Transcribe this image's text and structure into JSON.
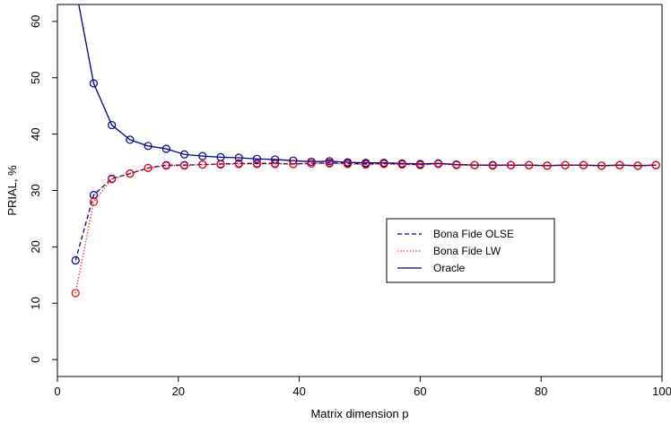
{
  "chart_data": {
    "type": "line",
    "xlabel": "Matrix dimension p",
    "ylabel": "PRIAL, %",
    "xlim": [
      0,
      100
    ],
    "ylim": [
      -3,
      63
    ],
    "x_ticks": [
      0,
      20,
      40,
      60,
      80,
      100
    ],
    "y_ticks": [
      0,
      10,
      20,
      30,
      40,
      50,
      60
    ],
    "grid": false,
    "legend_position": "center-right",
    "series": [
      {
        "name": "Bona Fide OLSE",
        "line_style": "dashed",
        "color": "#00008B",
        "marker": "circle",
        "x": [
          3,
          6,
          9,
          12,
          15,
          18,
          21,
          24,
          27,
          30,
          33,
          36,
          39,
          42,
          45,
          48,
          51,
          54,
          57,
          60,
          63,
          66,
          69,
          72,
          75,
          78,
          81,
          84,
          87,
          90,
          93,
          96,
          99
        ],
        "y": [
          17.6,
          29.2,
          32.1,
          33.0,
          34.0,
          34.5,
          34.5,
          34.6,
          34.7,
          34.8,
          34.8,
          34.8,
          34.7,
          34.8,
          34.9,
          34.8,
          34.7,
          34.8,
          34.7,
          34.6,
          34.8,
          34.6,
          34.5,
          34.5,
          34.5,
          34.5,
          34.4,
          34.5,
          34.5,
          34.4,
          34.5,
          34.4,
          34.5
        ]
      },
      {
        "name": "Bona Fide LW",
        "line_style": "dotted",
        "color": "#FF0000",
        "marker": "circle",
        "x": [
          3,
          6,
          9,
          12,
          15,
          18,
          21,
          24,
          27,
          30,
          33,
          36,
          39,
          42,
          45,
          48,
          51,
          54,
          57,
          60,
          63,
          66,
          69,
          72,
          75,
          78,
          81,
          84,
          87,
          90,
          93,
          96,
          99
        ],
        "y": [
          11.8,
          28.0,
          32.0,
          33.0,
          34.0,
          34.4,
          34.4,
          34.6,
          34.6,
          34.7,
          34.7,
          34.7,
          34.7,
          34.8,
          34.8,
          34.7,
          34.6,
          34.7,
          34.6,
          34.5,
          34.7,
          34.5,
          34.5,
          34.4,
          34.5,
          34.5,
          34.4,
          34.5,
          34.5,
          34.4,
          34.5,
          34.4,
          34.5
        ]
      },
      {
        "name": "Oracle",
        "line_style": "solid",
        "color": "#00008B",
        "marker": "circle",
        "x": [
          3,
          6,
          9,
          12,
          15,
          18,
          21,
          24,
          27,
          30,
          33,
          36,
          39,
          42,
          45,
          48,
          51,
          54,
          57,
          60,
          63,
          66,
          69,
          72,
          75,
          78,
          81,
          84,
          87,
          90,
          93,
          96,
          99
        ],
        "y": [
          66.0,
          49.0,
          41.6,
          39.0,
          37.9,
          37.4,
          36.4,
          36.1,
          35.9,
          35.8,
          35.6,
          35.5,
          35.3,
          35.1,
          35.2,
          35.0,
          34.9,
          34.9,
          34.8,
          34.7,
          34.8,
          34.6,
          34.5,
          34.5,
          34.5,
          34.5,
          34.4,
          34.5,
          34.5,
          34.4,
          34.5,
          34.4,
          34.5
        ]
      }
    ]
  }
}
